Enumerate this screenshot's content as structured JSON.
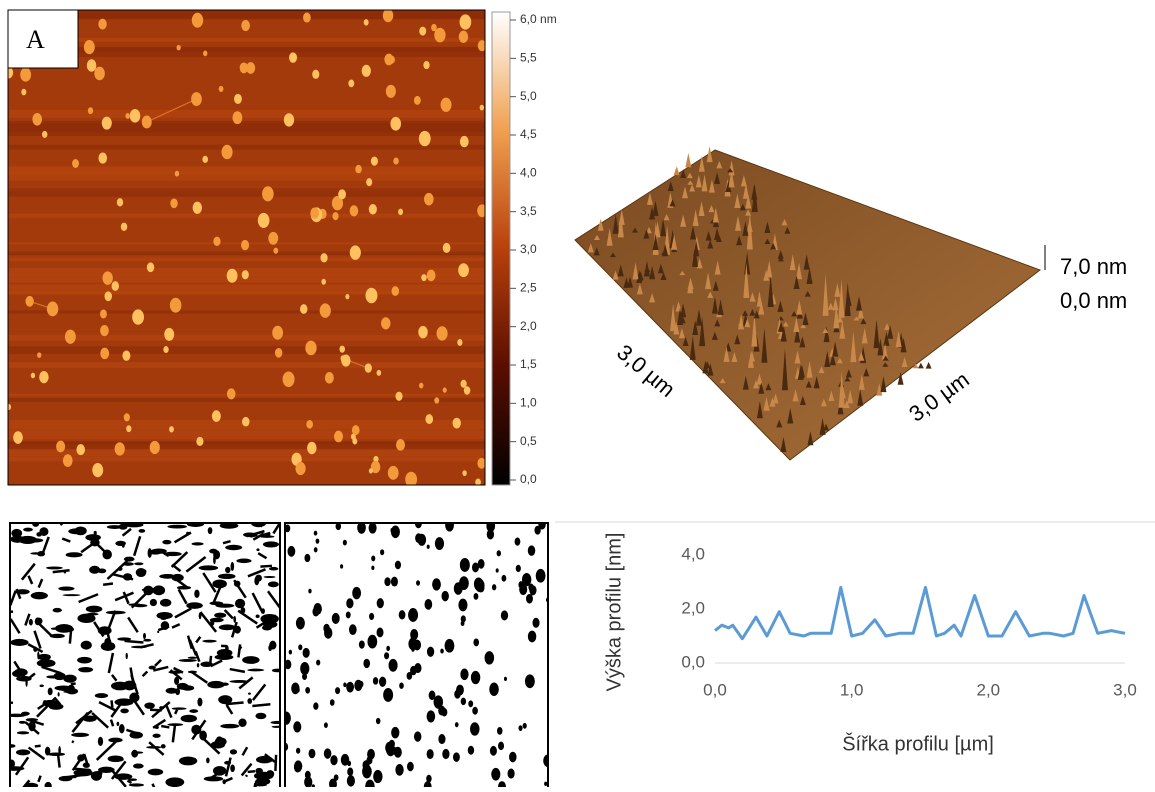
{
  "panel_label": "A",
  "colorbar": {
    "ticks": [
      {
        "value": 6.0,
        "label": "6,0 nm"
      },
      {
        "value": 5.5,
        "label": "5,5"
      },
      {
        "value": 5.0,
        "label": "5,0"
      },
      {
        "value": 4.5,
        "label": "4,5"
      },
      {
        "value": 4.0,
        "label": "4,0"
      },
      {
        "value": 3.5,
        "label": "3,5"
      },
      {
        "value": 3.0,
        "label": "3,0"
      },
      {
        "value": 2.5,
        "label": "2,5"
      },
      {
        "value": 2.0,
        "label": "2,0"
      },
      {
        "value": 1.5,
        "label": "1,5"
      },
      {
        "value": 1.0,
        "label": "1,0"
      },
      {
        "value": 0.5,
        "label": "0,5"
      },
      {
        "value": 0.0,
        "label": "0,0"
      }
    ],
    "lim": [
      0,
      6
    ]
  },
  "surface_3d": {
    "z_top": "7,0 nm",
    "z_bottom": "0,0 nm",
    "x_axis": "3,0 µm",
    "y_axis": "3,0 µm"
  },
  "chart_data": {
    "type": "line",
    "xlabel": "Šířka profilu [µm]",
    "ylabel": "Výška profilu [nm]",
    "xlim": [
      0,
      3
    ],
    "xticks": [
      {
        "value": 0,
        "label": "0,0"
      },
      {
        "value": 1,
        "label": "1,0"
      },
      {
        "value": 2,
        "label": "2,0"
      },
      {
        "value": 3,
        "label": "3,0"
      }
    ],
    "ylim": [
      0,
      4
    ],
    "yticks": [
      {
        "value": 0,
        "label": "0,0"
      },
      {
        "value": 2,
        "label": "2,0"
      },
      {
        "value": 4,
        "label": "4,0"
      }
    ],
    "grid": false,
    "x": [
      0,
      0.05,
      0.1,
      0.13,
      0.2,
      0.3,
      0.38,
      0.47,
      0.55,
      0.65,
      0.7,
      0.8,
      0.85,
      0.92,
      1.0,
      1.08,
      1.17,
      1.25,
      1.35,
      1.45,
      1.54,
      1.62,
      1.68,
      1.75,
      1.8,
      1.9,
      2.0,
      2.1,
      2.2,
      2.3,
      2.4,
      2.45,
      2.55,
      2.62,
      2.7,
      2.8,
      2.9,
      3.0
    ],
    "series": [
      {
        "color": "#5b9bd5",
        "values": [
          1.2,
          1.4,
          1.3,
          1.4,
          0.9,
          1.7,
          1.0,
          1.9,
          1.1,
          1.0,
          1.1,
          1.1,
          1.1,
          2.8,
          1.0,
          1.1,
          1.6,
          1.0,
          1.1,
          1.1,
          2.8,
          1.0,
          1.1,
          1.4,
          1.0,
          2.5,
          1.0,
          1.0,
          1.9,
          1.0,
          1.1,
          1.1,
          1.0,
          1.1,
          2.5,
          1.1,
          1.2,
          1.1
        ]
      }
    ]
  }
}
